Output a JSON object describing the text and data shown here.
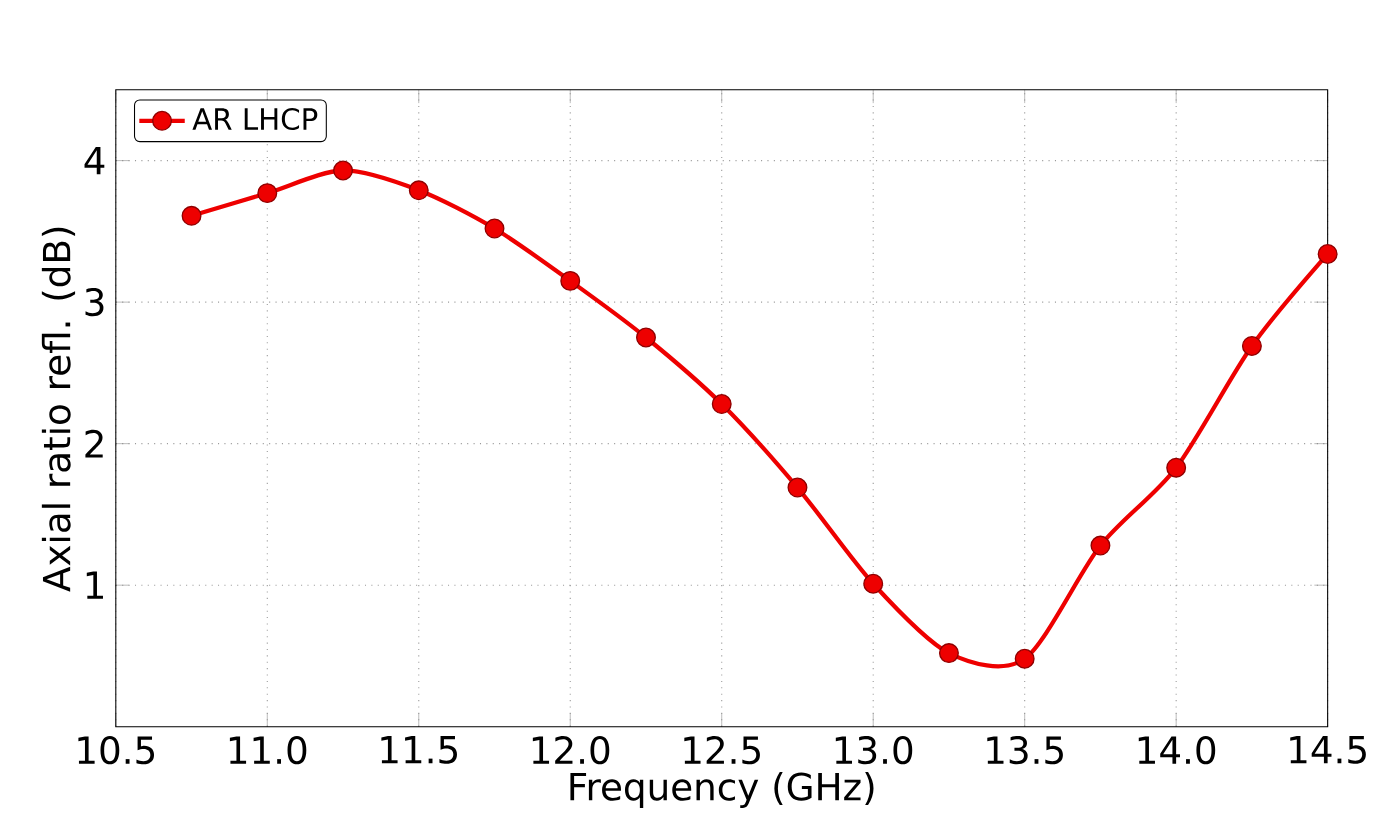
{
  "chart_data": {
    "type": "line",
    "xlabel": "Frequency (GHz)",
    "ylabel": "Axial ratio refl. (dB)",
    "x": [
      10.75,
      11.0,
      11.25,
      11.5,
      11.75,
      12.0,
      12.25,
      12.5,
      12.75,
      13.0,
      13.25,
      13.5,
      13.75,
      14.0,
      14.25,
      14.5
    ],
    "series": [
      {
        "name": "AR LHCP",
        "color": "#ee0000",
        "values": [
          3.61,
          3.77,
          3.93,
          3.79,
          3.52,
          3.15,
          2.75,
          2.28,
          1.69,
          1.01,
          0.52,
          0.48,
          1.28,
          1.83,
          2.69,
          3.34
        ]
      }
    ],
    "xlim": [
      10.5,
      14.5
    ],
    "ylim": [
      0,
      4.5
    ],
    "xticks": [
      {
        "value": 10.5,
        "label": "10.5"
      },
      {
        "value": 11.0,
        "label": "11.0"
      },
      {
        "value": 11.5,
        "label": "11.5"
      },
      {
        "value": 12.0,
        "label": "12.0"
      },
      {
        "value": 12.5,
        "label": "12.5"
      },
      {
        "value": 13.0,
        "label": "13.0"
      },
      {
        "value": 13.5,
        "label": "13.5"
      },
      {
        "value": 14.0,
        "label": "14.0"
      },
      {
        "value": 14.5,
        "label": "14.5"
      }
    ],
    "yticks": [
      1,
      2,
      3,
      4
    ],
    "grid": true,
    "legend": "top left",
    "marker": "circle",
    "line_style": "solid"
  }
}
